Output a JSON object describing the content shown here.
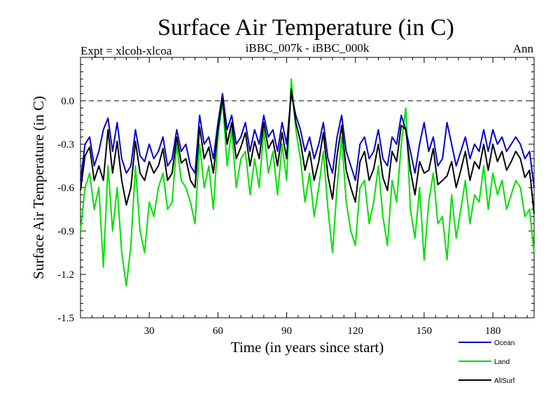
{
  "chart_data": {
    "type": "line",
    "title": "Surface Air Temperature (in C)",
    "subtitle_left": "Expt = xlcoh-xlcoa",
    "subtitle_center": "iBBC_007k - iBBC_000k",
    "subtitle_right": "Ann",
    "xlabel": "Time (in years since start)",
    "ylabel": "Surface Air Temperature (in C)",
    "xlim": [
      0,
      198
    ],
    "ylim": [
      -1.5,
      0.3
    ],
    "x_ticks": [
      30,
      60,
      90,
      120,
      150,
      180
    ],
    "y_ticks": [
      "0.0",
      "-0.3",
      "-0.6",
      "-0.9",
      "-1.2",
      "-1.5"
    ],
    "y_tick_values": [
      0.0,
      -0.3,
      -0.6,
      -0.9,
      -1.2,
      -1.5
    ],
    "reference_line": 0.0,
    "x": [
      0,
      2,
      4,
      6,
      8,
      10,
      12,
      14,
      16,
      18,
      20,
      22,
      24,
      26,
      28,
      30,
      32,
      34,
      36,
      38,
      40,
      42,
      44,
      46,
      48,
      50,
      52,
      54,
      56,
      58,
      60,
      62,
      64,
      66,
      68,
      70,
      72,
      74,
      76,
      78,
      80,
      82,
      84,
      86,
      88,
      90,
      92,
      94,
      96,
      98,
      100,
      102,
      104,
      106,
      108,
      110,
      112,
      114,
      116,
      118,
      120,
      122,
      124,
      126,
      128,
      130,
      132,
      134,
      136,
      138,
      140,
      142,
      144,
      146,
      148,
      150,
      152,
      154,
      156,
      158,
      160,
      162,
      164,
      166,
      168,
      170,
      172,
      174,
      176,
      178,
      180,
      182,
      184,
      186,
      188,
      190,
      192,
      194,
      196,
      198
    ],
    "series": [
      {
        "name": "Ocean",
        "color": "#0000cc",
        "values": [
          -0.55,
          -0.3,
          -0.25,
          -0.45,
          -0.35,
          -0.2,
          -0.12,
          -0.35,
          -0.15,
          -0.4,
          -0.5,
          -0.45,
          -0.2,
          -0.38,
          -0.42,
          -0.3,
          -0.4,
          -0.35,
          -0.25,
          -0.45,
          -0.4,
          -0.2,
          -0.35,
          -0.3,
          -0.45,
          -0.5,
          -0.1,
          -0.3,
          -0.25,
          -0.4,
          -0.15,
          0.05,
          -0.2,
          -0.1,
          -0.3,
          -0.25,
          -0.15,
          -0.35,
          -0.2,
          -0.3,
          -0.1,
          -0.25,
          -0.2,
          -0.35,
          -0.15,
          -0.3,
          0.05,
          -0.1,
          -0.2,
          -0.35,
          -0.25,
          -0.4,
          -0.3,
          -0.15,
          -0.4,
          -0.5,
          -0.25,
          -0.1,
          -0.35,
          -0.45,
          -0.55,
          -0.3,
          -0.25,
          -0.4,
          -0.35,
          -0.2,
          -0.4,
          -0.45,
          -0.25,
          -0.3,
          -0.1,
          -0.2,
          -0.35,
          -0.5,
          -0.3,
          -0.15,
          -0.35,
          -0.25,
          -0.45,
          -0.4,
          -0.15,
          -0.3,
          -0.45,
          -0.35,
          -0.25,
          -0.4,
          -0.3,
          -0.35,
          -0.2,
          -0.35,
          -0.2,
          -0.3,
          -0.25,
          -0.35,
          -0.3,
          -0.25,
          -0.3,
          -0.4,
          -0.35,
          -0.6
        ]
      },
      {
        "name": "Land",
        "color": "#00e000",
        "values": [
          -0.9,
          -0.6,
          -0.5,
          -0.75,
          -0.6,
          -1.15,
          -0.45,
          -0.9,
          -0.6,
          -1.05,
          -1.28,
          -1.0,
          -0.45,
          -0.9,
          -1.05,
          -0.7,
          -0.8,
          -0.6,
          -0.5,
          -0.75,
          -0.7,
          -0.3,
          -0.55,
          -0.6,
          -0.7,
          -0.85,
          -0.3,
          -0.6,
          -0.45,
          -0.75,
          -0.25,
          0.0,
          -0.45,
          -0.2,
          -0.6,
          -0.4,
          -0.35,
          -0.65,
          -0.4,
          -0.6,
          -0.2,
          -0.5,
          -0.35,
          -0.65,
          -0.3,
          -0.55,
          0.15,
          -0.2,
          -0.4,
          -0.7,
          -0.5,
          -0.8,
          -0.6,
          -0.35,
          -0.75,
          -1.05,
          -0.6,
          -0.25,
          -0.7,
          -0.9,
          -1.0,
          -0.6,
          -0.55,
          -0.85,
          -0.7,
          -0.45,
          -0.8,
          -1.0,
          -0.55,
          -0.7,
          -0.3,
          -0.05,
          -0.75,
          -0.95,
          -0.6,
          -1.1,
          -0.7,
          -0.5,
          -0.85,
          -0.8,
          -1.1,
          -0.65,
          -0.95,
          -0.75,
          -0.55,
          -0.85,
          -0.65,
          -0.7,
          -0.45,
          -0.75,
          -0.5,
          -0.65,
          -0.55,
          -0.75,
          -0.65,
          -0.55,
          -0.6,
          -0.8,
          -0.75,
          -1.05
        ]
      },
      {
        "name": "AllSurf",
        "color": "#000000",
        "values": [
          -0.62,
          -0.38,
          -0.32,
          -0.55,
          -0.45,
          -0.55,
          -0.2,
          -0.5,
          -0.28,
          -0.55,
          -0.72,
          -0.6,
          -0.28,
          -0.5,
          -0.55,
          -0.42,
          -0.5,
          -0.45,
          -0.33,
          -0.55,
          -0.5,
          -0.25,
          -0.43,
          -0.4,
          -0.55,
          -0.6,
          -0.18,
          -0.4,
          -0.32,
          -0.5,
          -0.2,
          0.02,
          -0.3,
          -0.15,
          -0.4,
          -0.32,
          -0.22,
          -0.45,
          -0.28,
          -0.4,
          -0.15,
          -0.33,
          -0.27,
          -0.45,
          -0.22,
          -0.4,
          0.08,
          -0.15,
          -0.28,
          -0.48,
          -0.35,
          -0.55,
          -0.42,
          -0.22,
          -0.52,
          -0.68,
          -0.38,
          -0.17,
          -0.48,
          -0.6,
          -0.7,
          -0.42,
          -0.35,
          -0.55,
          -0.47,
          -0.3,
          -0.53,
          -0.62,
          -0.35,
          -0.42,
          -0.17,
          -0.2,
          -0.48,
          -0.65,
          -0.42,
          -0.5,
          -0.48,
          -0.33,
          -0.58,
          -0.55,
          -0.52,
          -0.42,
          -0.6,
          -0.48,
          -0.35,
          -0.55,
          -0.42,
          -0.47,
          -0.3,
          -0.48,
          -0.3,
          -0.42,
          -0.35,
          -0.48,
          -0.42,
          -0.35,
          -0.4,
          -0.53,
          -0.48,
          -0.78
        ]
      }
    ],
    "legend_placement": "bottom-right"
  }
}
